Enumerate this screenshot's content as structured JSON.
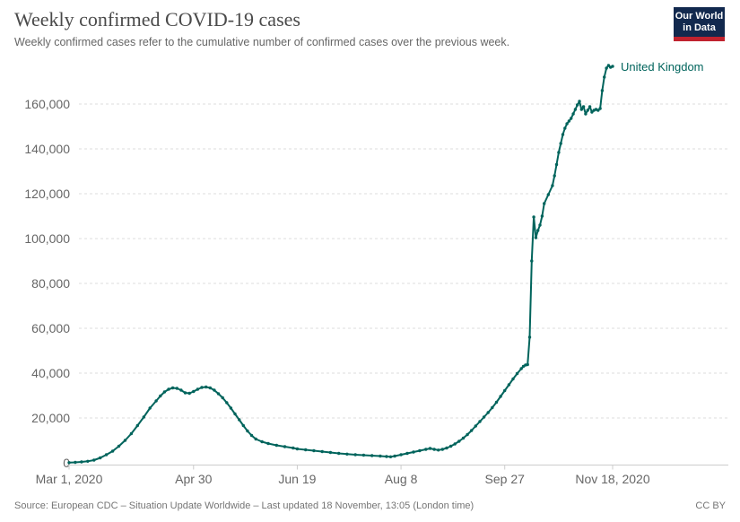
{
  "header": {
    "title": "Weekly confirmed COVID-19 cases",
    "subtitle": "Weekly confirmed cases refer to the cumulative number of confirmed cases over the previous week.",
    "logo": {
      "line1": "Our World",
      "line2": "in Data",
      "bg_color": "#12294e",
      "stripe_color": "#c0222e"
    }
  },
  "footer": {
    "source": "Source: European CDC – Situation Update Worldwide – Last updated 18 November, 13:05 (London time)",
    "license": "CC BY"
  },
  "chart_data": {
    "type": "line",
    "title": "Weekly confirmed COVID-19 cases",
    "entity_label": "United Kingdom",
    "line_color": "#00645c",
    "grid": "dashed",
    "legend_position": "end-of-line",
    "ylabel": "",
    "xlabel": "",
    "ylim": [
      0,
      180000
    ],
    "y_ticks": [
      0,
      20000,
      40000,
      60000,
      80000,
      100000,
      120000,
      140000,
      160000
    ],
    "x_start_date": "Mar 1, 2020",
    "x_end_date": "Nov 18, 2020",
    "x_ticks": [
      {
        "day": 0,
        "label": "Mar 1, 2020"
      },
      {
        "day": 60,
        "label": "Apr 30"
      },
      {
        "day": 110,
        "label": "Jun 19"
      },
      {
        "day": 160,
        "label": "Aug 8"
      },
      {
        "day": 210,
        "label": "Sep 27"
      },
      {
        "day": 262,
        "label": "Nov 18, 2020"
      }
    ],
    "points_day_value": [
      [
        0,
        100
      ],
      [
        3,
        200
      ],
      [
        6,
        400
      ],
      [
        9,
        700
      ],
      [
        12,
        1200
      ],
      [
        15,
        2200
      ],
      [
        18,
        3600
      ],
      [
        21,
        5200
      ],
      [
        24,
        7400
      ],
      [
        27,
        10000
      ],
      [
        30,
        13000
      ],
      [
        33,
        16600
      ],
      [
        36,
        20400
      ],
      [
        39,
        24400
      ],
      [
        42,
        27600
      ],
      [
        44,
        29800
      ],
      [
        46,
        31600
      ],
      [
        48,
        32800
      ],
      [
        50,
        33400
      ],
      [
        52,
        33200
      ],
      [
        54,
        32400
      ],
      [
        56,
        31200
      ],
      [
        58,
        31000
      ],
      [
        60,
        31800
      ],
      [
        62,
        32800
      ],
      [
        64,
        33600
      ],
      [
        66,
        33800
      ],
      [
        68,
        33400
      ],
      [
        70,
        32400
      ],
      [
        72,
        30800
      ],
      [
        74,
        29000
      ],
      [
        76,
        26800
      ],
      [
        78,
        24400
      ],
      [
        80,
        21800
      ],
      [
        82,
        19200
      ],
      [
        84,
        16600
      ],
      [
        86,
        14200
      ],
      [
        88,
        12200
      ],
      [
        90,
        10600
      ],
      [
        93,
        9400
      ],
      [
        96,
        8600
      ],
      [
        100,
        7800
      ],
      [
        104,
        7200
      ],
      [
        108,
        6600
      ],
      [
        110,
        6200
      ],
      [
        114,
        5800
      ],
      [
        118,
        5400
      ],
      [
        122,
        5000
      ],
      [
        126,
        4600
      ],
      [
        130,
        4200
      ],
      [
        134,
        3900
      ],
      [
        138,
        3600
      ],
      [
        142,
        3400
      ],
      [
        146,
        3200
      ],
      [
        150,
        3000
      ],
      [
        153,
        2800
      ],
      [
        155,
        2700
      ],
      [
        157,
        3000
      ],
      [
        160,
        3600
      ],
      [
        163,
        4200
      ],
      [
        166,
        4800
      ],
      [
        169,
        5400
      ],
      [
        172,
        6000
      ],
      [
        174,
        6400
      ],
      [
        176,
        6000
      ],
      [
        178,
        5700
      ],
      [
        180,
        6000
      ],
      [
        182,
        6600
      ],
      [
        184,
        7400
      ],
      [
        186,
        8400
      ],
      [
        188,
        9600
      ],
      [
        190,
        11000
      ],
      [
        192,
        12600
      ],
      [
        194,
        14400
      ],
      [
        196,
        16400
      ],
      [
        198,
        18400
      ],
      [
        200,
        20400
      ],
      [
        202,
        22400
      ],
      [
        204,
        24600
      ],
      [
        206,
        27000
      ],
      [
        208,
        29600
      ],
      [
        210,
        32200
      ],
      [
        212,
        34800
      ],
      [
        214,
        37400
      ],
      [
        216,
        39800
      ],
      [
        218,
        42000
      ],
      [
        219,
        43000
      ],
      [
        220,
        43600
      ],
      [
        221,
        43800
      ],
      [
        222,
        56000
      ],
      [
        223,
        90000
      ],
      [
        224,
        109600
      ],
      [
        225,
        100400
      ],
      [
        226,
        103600
      ],
      [
        227,
        106000
      ],
      [
        228,
        110000
      ],
      [
        229,
        115600
      ],
      [
        231,
        119600
      ],
      [
        233,
        123600
      ],
      [
        234,
        128000
      ],
      [
        235,
        133000
      ],
      [
        236,
        138400
      ],
      [
        237,
        142400
      ],
      [
        238,
        146400
      ],
      [
        239,
        149200
      ],
      [
        240,
        151200
      ],
      [
        241,
        152400
      ],
      [
        242,
        153600
      ],
      [
        243,
        155600
      ],
      [
        244,
        157600
      ],
      [
        245,
        159600
      ],
      [
        246,
        161200
      ],
      [
        247,
        157600
      ],
      [
        248,
        158800
      ],
      [
        249,
        155600
      ],
      [
        250,
        157200
      ],
      [
        251,
        158800
      ],
      [
        252,
        156400
      ],
      [
        253,
        157200
      ],
      [
        254,
        157600
      ],
      [
        255,
        157200
      ],
      [
        256,
        158000
      ],
      [
        257,
        166000
      ],
      [
        258,
        172000
      ],
      [
        259,
        176000
      ],
      [
        260,
        177200
      ],
      [
        261,
        176400
      ],
      [
        262,
        176800
      ]
    ]
  }
}
